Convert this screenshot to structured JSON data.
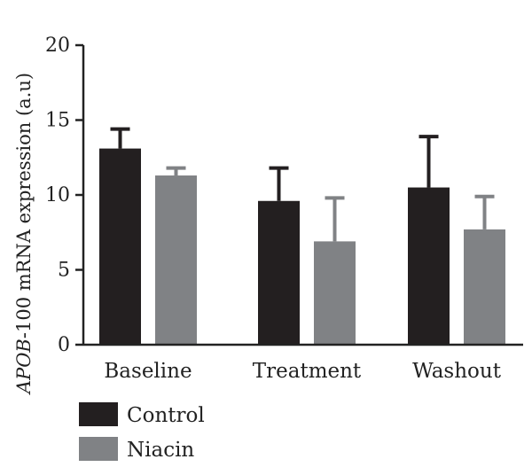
{
  "chart_data": {
    "type": "bar",
    "title": "",
    "xlabel": "",
    "ylabel_italic": "APOB",
    "ylabel_rest": "-100 mRNA expression (a.u)",
    "categories": [
      "Baseline",
      "Treatment",
      "Washout"
    ],
    "series": [
      {
        "name": "Control",
        "values": [
          13.1,
          9.6,
          10.5
        ],
        "errors": [
          1.3,
          2.2,
          3.4
        ],
        "color": "#231f20"
      },
      {
        "name": "Niacin",
        "values": [
          11.3,
          6.9,
          7.7
        ],
        "errors": [
          0.5,
          2.9,
          2.2
        ],
        "color": "#808285"
      }
    ],
    "ylim": [
      0,
      20
    ],
    "yticks": [
      0,
      5,
      10,
      15,
      20
    ],
    "grid": false,
    "legend_position": "bottom-left"
  }
}
